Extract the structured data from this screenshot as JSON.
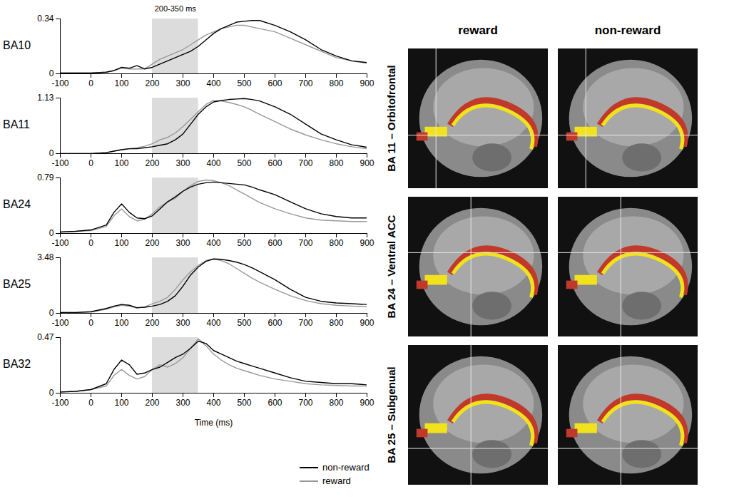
{
  "chart_data": [
    {
      "type": "line",
      "ylabel": "BA10",
      "x": [
        -100,
        -50,
        0,
        50,
        75,
        100,
        125,
        150,
        175,
        200,
        225,
        250,
        275,
        300,
        325,
        350,
        375,
        400,
        425,
        450,
        475,
        500,
        525,
        550,
        600,
        650,
        700,
        750,
        800,
        850,
        900
      ],
      "xlim": [
        -100,
        900
      ],
      "xticks": [
        -100,
        0,
        100,
        200,
        300,
        400,
        500,
        600,
        700,
        800,
        900
      ],
      "ylim": [
        0,
        0.34
      ],
      "yticks": [
        0,
        0.34
      ],
      "span": [
        200,
        350
      ],
      "annotation": "200-350 ms",
      "series": [
        {
          "name": "non-reward",
          "color": "#000000",
          "values": [
            0.005,
            0.005,
            0.005,
            0.01,
            0.02,
            0.04,
            0.035,
            0.05,
            0.03,
            0.04,
            0.06,
            0.08,
            0.1,
            0.12,
            0.14,
            0.17,
            0.21,
            0.25,
            0.28,
            0.3,
            0.32,
            0.325,
            0.33,
            0.33,
            0.3,
            0.26,
            0.21,
            0.15,
            0.11,
            0.08,
            0.07
          ]
        },
        {
          "name": "reward",
          "color": "#999999",
          "values": [
            0.005,
            0.005,
            0.005,
            0.01,
            0.02,
            0.035,
            0.03,
            0.03,
            0.03,
            0.06,
            0.09,
            0.11,
            0.13,
            0.15,
            0.18,
            0.21,
            0.24,
            0.26,
            0.28,
            0.29,
            0.3,
            0.3,
            0.29,
            0.28,
            0.26,
            0.22,
            0.18,
            0.14,
            0.1,
            0.08,
            0.065
          ]
        }
      ]
    },
    {
      "type": "line",
      "ylabel": "BA11",
      "x": [
        -100,
        -50,
        0,
        50,
        75,
        100,
        125,
        150,
        175,
        200,
        225,
        250,
        275,
        300,
        325,
        350,
        375,
        400,
        425,
        450,
        475,
        500,
        525,
        550,
        600,
        650,
        700,
        750,
        800,
        850,
        900
      ],
      "xlim": [
        -100,
        900
      ],
      "xticks": [
        -100,
        0,
        100,
        200,
        300,
        400,
        500,
        600,
        700,
        800,
        900
      ],
      "ylim": [
        0,
        1.13
      ],
      "yticks": [
        0,
        1.13
      ],
      "span": [
        200,
        350
      ],
      "series": [
        {
          "name": "non-reward",
          "color": "#000000",
          "values": [
            0,
            0,
            0,
            0.02,
            0.05,
            0.08,
            0.1,
            0.1,
            0.12,
            0.14,
            0.17,
            0.2,
            0.28,
            0.4,
            0.6,
            0.8,
            0.95,
            1.05,
            1.08,
            1.1,
            1.11,
            1.12,
            1.1,
            1.07,
            0.95,
            0.8,
            0.6,
            0.4,
            0.28,
            0.18,
            0.13
          ]
        },
        {
          "name": "reward",
          "color": "#999999",
          "values": [
            0,
            0,
            0,
            0.02,
            0.05,
            0.08,
            0.1,
            0.12,
            0.15,
            0.2,
            0.28,
            0.33,
            0.42,
            0.55,
            0.7,
            0.85,
            1.0,
            1.08,
            1.07,
            1.04,
            1.0,
            0.95,
            0.88,
            0.8,
            0.65,
            0.5,
            0.38,
            0.28,
            0.2,
            0.14,
            0.1
          ]
        }
      ]
    },
    {
      "type": "line",
      "ylabel": "BA24",
      "x": [
        -100,
        -50,
        0,
        50,
        75,
        100,
        125,
        150,
        175,
        200,
        225,
        250,
        275,
        300,
        325,
        350,
        375,
        400,
        425,
        450,
        475,
        500,
        525,
        550,
        600,
        650,
        700,
        750,
        800,
        850,
        900
      ],
      "xlim": [
        -100,
        900
      ],
      "xticks": [
        -100,
        0,
        100,
        200,
        300,
        400,
        500,
        600,
        700,
        800,
        900
      ],
      "ylim": [
        0,
        0.79
      ],
      "yticks": [
        0,
        0.79
      ],
      "span": [
        200,
        350
      ],
      "series": [
        {
          "name": "non-reward",
          "color": "#000000",
          "values": [
            0.02,
            0.03,
            0.05,
            0.12,
            0.3,
            0.42,
            0.3,
            0.22,
            0.21,
            0.25,
            0.35,
            0.45,
            0.52,
            0.6,
            0.66,
            0.7,
            0.72,
            0.73,
            0.72,
            0.71,
            0.7,
            0.69,
            0.66,
            0.62,
            0.55,
            0.45,
            0.35,
            0.28,
            0.24,
            0.22,
            0.22
          ]
        },
        {
          "name": "reward",
          "color": "#999999",
          "values": [
            0.02,
            0.03,
            0.04,
            0.1,
            0.25,
            0.35,
            0.24,
            0.18,
            0.2,
            0.28,
            0.38,
            0.45,
            0.5,
            0.6,
            0.68,
            0.74,
            0.76,
            0.75,
            0.72,
            0.68,
            0.62,
            0.56,
            0.5,
            0.44,
            0.35,
            0.28,
            0.22,
            0.19,
            0.18,
            0.17,
            0.17
          ]
        }
      ]
    },
    {
      "type": "line",
      "ylabel": "BA25",
      "x": [
        -100,
        -50,
        0,
        50,
        75,
        100,
        125,
        150,
        175,
        200,
        225,
        250,
        275,
        300,
        325,
        350,
        375,
        400,
        425,
        450,
        475,
        500,
        525,
        550,
        600,
        650,
        700,
        750,
        800,
        850,
        900
      ],
      "xlim": [
        -100,
        900
      ],
      "xticks": [
        -100,
        0,
        100,
        200,
        300,
        400,
        500,
        600,
        700,
        800,
        900
      ],
      "ylim": [
        0,
        3.48
      ],
      "yticks": [
        0,
        3.48
      ],
      "span": [
        200,
        350
      ],
      "series": [
        {
          "name": "non-reward",
          "color": "#000000",
          "values": [
            0.05,
            0.05,
            0.1,
            0.3,
            0.45,
            0.55,
            0.5,
            0.35,
            0.38,
            0.45,
            0.55,
            0.75,
            1.1,
            1.7,
            2.4,
            2.9,
            3.25,
            3.4,
            3.38,
            3.3,
            3.2,
            3.05,
            2.85,
            2.6,
            2.1,
            1.5,
            1.0,
            0.75,
            0.65,
            0.6,
            0.55
          ]
        },
        {
          "name": "reward",
          "color": "#999999",
          "values": [
            0.05,
            0.05,
            0.08,
            0.25,
            0.4,
            0.5,
            0.45,
            0.32,
            0.4,
            0.6,
            0.75,
            1.0,
            1.5,
            2.1,
            2.6,
            3.0,
            3.3,
            3.4,
            3.3,
            3.1,
            2.8,
            2.5,
            2.2,
            1.95,
            1.5,
            1.1,
            0.8,
            0.6,
            0.5,
            0.45,
            0.42
          ]
        }
      ]
    },
    {
      "type": "line",
      "ylabel": "BA32",
      "xlabel": "Time (ms)",
      "legend": "bottom-right",
      "x": [
        -100,
        -50,
        0,
        50,
        75,
        100,
        125,
        150,
        175,
        200,
        225,
        250,
        275,
        300,
        325,
        350,
        375,
        400,
        425,
        450,
        475,
        500,
        525,
        550,
        600,
        650,
        700,
        750,
        800,
        850,
        900
      ],
      "xlim": [
        -100,
        900
      ],
      "xticks": [
        -100,
        0,
        100,
        200,
        300,
        400,
        500,
        600,
        700,
        800,
        900
      ],
      "ylim": [
        0,
        0.47
      ],
      "yticks": [
        0,
        0.47
      ],
      "span": [
        200,
        350
      ],
      "series": [
        {
          "name": "non-reward",
          "color": "#000000",
          "values": [
            0.01,
            0.015,
            0.03,
            0.08,
            0.2,
            0.28,
            0.24,
            0.16,
            0.17,
            0.2,
            0.22,
            0.26,
            0.3,
            0.33,
            0.38,
            0.44,
            0.42,
            0.36,
            0.33,
            0.3,
            0.27,
            0.25,
            0.23,
            0.21,
            0.17,
            0.13,
            0.1,
            0.09,
            0.08,
            0.08,
            0.07
          ]
        },
        {
          "name": "reward",
          "color": "#999999",
          "values": [
            0.01,
            0.015,
            0.03,
            0.06,
            0.15,
            0.2,
            0.15,
            0.12,
            0.14,
            0.2,
            0.24,
            0.22,
            0.25,
            0.3,
            0.38,
            0.46,
            0.4,
            0.33,
            0.28,
            0.24,
            0.21,
            0.19,
            0.17,
            0.15,
            0.12,
            0.1,
            0.08,
            0.07,
            0.065,
            0.06,
            0.06
          ]
        }
      ]
    }
  ],
  "image_grid": {
    "columns": [
      "reward",
      "non-reward"
    ],
    "rows": [
      "BA 11 – Orbitofrontal",
      "BA 24 – Ventral ACC",
      "BA 25 – Subgenual"
    ]
  }
}
